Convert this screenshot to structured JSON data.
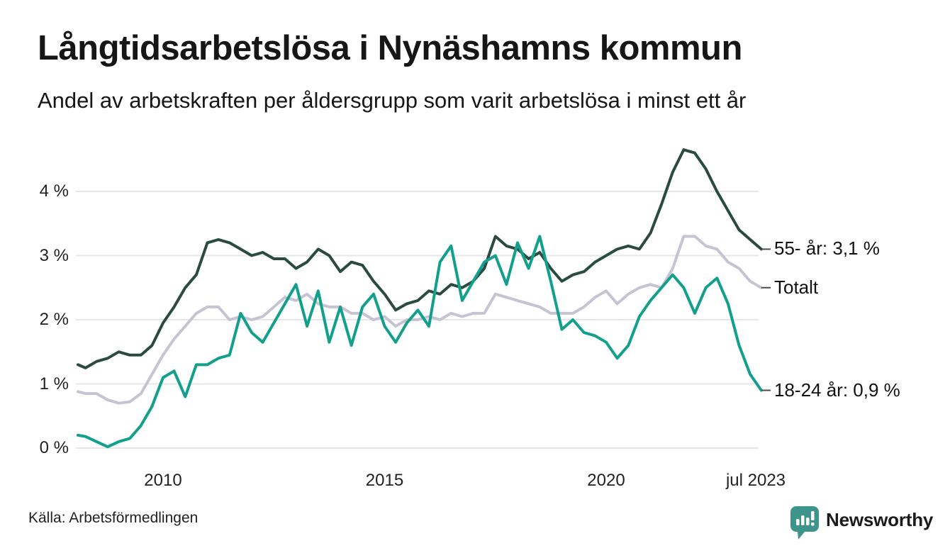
{
  "header": {
    "title": "Långtidsarbetslösa i Nynäshamns kommun",
    "subtitle": "Andel av arbetskraften per åldersgrupp som varit arbetslösa i minst ett år"
  },
  "footer": {
    "source": "Källa: Arbetsförmedlingen",
    "brand": "Newsworthy",
    "brand_color": "#3d948b",
    "logo_icon": "speech-bubble-bar-chart"
  },
  "colors": {
    "grid": "#e7e7ea",
    "connector": "#4d4d4d",
    "text": "#1a1a1a"
  },
  "chart_data": {
    "type": "line",
    "title": "Långtidsarbetslösa i Nynäshamns kommun",
    "xlabel": "",
    "ylabel": "Andel av arbetskraften (%)",
    "grid": "horizontal",
    "legend_position": "right-end-labels",
    "xlim": [
      2008.08,
      2023.5
    ],
    "ylim": [
      0,
      4.8
    ],
    "x_ticks": [
      {
        "value": 2010,
        "label": "2010"
      },
      {
        "value": 2015,
        "label": "2015"
      },
      {
        "value": 2020,
        "label": "2020"
      },
      {
        "value": 2023.5,
        "label": "jul 2023"
      }
    ],
    "y_ticks": [
      {
        "value": 0,
        "label": "0 %"
      },
      {
        "value": 1,
        "label": "1 %"
      },
      {
        "value": 2,
        "label": "2 %"
      },
      {
        "value": 3,
        "label": "3 %"
      },
      {
        "value": 4,
        "label": "4 %"
      }
    ],
    "x": [
      2008.08,
      2008.25,
      2008.5,
      2008.75,
      2009,
      2009.25,
      2009.5,
      2009.75,
      2010,
      2010.25,
      2010.5,
      2010.75,
      2011,
      2011.25,
      2011.5,
      2011.75,
      2012,
      2012.25,
      2012.5,
      2012.75,
      2013,
      2013.25,
      2013.5,
      2013.75,
      2014,
      2014.25,
      2014.5,
      2014.75,
      2015,
      2015.25,
      2015.5,
      2015.75,
      2016,
      2016.25,
      2016.5,
      2016.75,
      2017,
      2017.25,
      2017.5,
      2017.75,
      2018,
      2018.25,
      2018.5,
      2018.75,
      2019,
      2019.25,
      2019.5,
      2019.75,
      2020,
      2020.25,
      2020.5,
      2020.75,
      2021,
      2021.25,
      2021.5,
      2021.75,
      2022,
      2022.25,
      2022.5,
      2022.75,
      2023,
      2023.25,
      2023.5
    ],
    "series": [
      {
        "name": "55- år",
        "end_label": "55- år: 3,1 %",
        "end_value_text": "3,1 %",
        "color": "#2a4b42",
        "z": 2,
        "values": [
          1.3,
          1.25,
          1.35,
          1.4,
          1.5,
          1.45,
          1.45,
          1.6,
          1.95,
          2.2,
          2.5,
          2.7,
          3.2,
          3.25,
          3.2,
          3.1,
          3.0,
          3.05,
          2.95,
          2.95,
          2.8,
          2.9,
          3.1,
          3.0,
          2.75,
          2.9,
          2.85,
          2.6,
          2.4,
          2.15,
          2.25,
          2.3,
          2.45,
          2.4,
          2.55,
          2.5,
          2.6,
          2.8,
          3.3,
          3.15,
          3.1,
          2.95,
          3.05,
          2.8,
          2.6,
          2.7,
          2.75,
          2.9,
          3.0,
          3.1,
          3.15,
          3.1,
          3.35,
          3.8,
          4.3,
          4.65,
          4.6,
          4.35,
          4.0,
          3.7,
          3.4,
          3.25,
          3.1
        ]
      },
      {
        "name": "Totalt",
        "end_label": "Totalt",
        "end_value_text": "2,5 %",
        "color": "#c6c4d2",
        "z": 1,
        "values": [
          0.88,
          0.85,
          0.85,
          0.75,
          0.7,
          0.72,
          0.85,
          1.15,
          1.45,
          1.7,
          1.9,
          2.1,
          2.2,
          2.2,
          2.0,
          2.05,
          2.0,
          2.05,
          2.2,
          2.35,
          2.3,
          2.4,
          2.25,
          2.2,
          2.2,
          2.1,
          2.1,
          2.0,
          2.05,
          1.9,
          2.0,
          2.0,
          2.05,
          2.0,
          2.1,
          2.05,
          2.1,
          2.1,
          2.4,
          2.35,
          2.3,
          2.25,
          2.2,
          2.1,
          2.1,
          2.1,
          2.2,
          2.35,
          2.45,
          2.25,
          2.4,
          2.5,
          2.55,
          2.5,
          2.8,
          3.3,
          3.3,
          3.15,
          3.1,
          2.9,
          2.8,
          2.6,
          2.5
        ]
      },
      {
        "name": "18-24 år",
        "end_label": "18-24 år: 0,9 %",
        "end_value_text": "0,9 %",
        "color": "#12a08d",
        "z": 3,
        "values": [
          0.2,
          0.18,
          0.1,
          0.02,
          0.1,
          0.15,
          0.35,
          0.65,
          1.1,
          1.2,
          0.8,
          1.3,
          1.3,
          1.4,
          1.45,
          2.1,
          1.8,
          1.65,
          1.95,
          2.25,
          2.55,
          1.9,
          2.45,
          1.65,
          2.2,
          1.6,
          2.2,
          2.4,
          1.9,
          1.65,
          1.95,
          2.15,
          1.9,
          2.9,
          3.15,
          2.3,
          2.6,
          2.9,
          3.0,
          2.55,
          3.2,
          2.8,
          3.3,
          2.6,
          1.85,
          2.0,
          1.8,
          1.75,
          1.65,
          1.4,
          1.6,
          2.05,
          2.3,
          2.5,
          2.7,
          2.5,
          2.1,
          2.5,
          2.65,
          2.25,
          1.6,
          1.15,
          0.9
        ]
      }
    ]
  }
}
